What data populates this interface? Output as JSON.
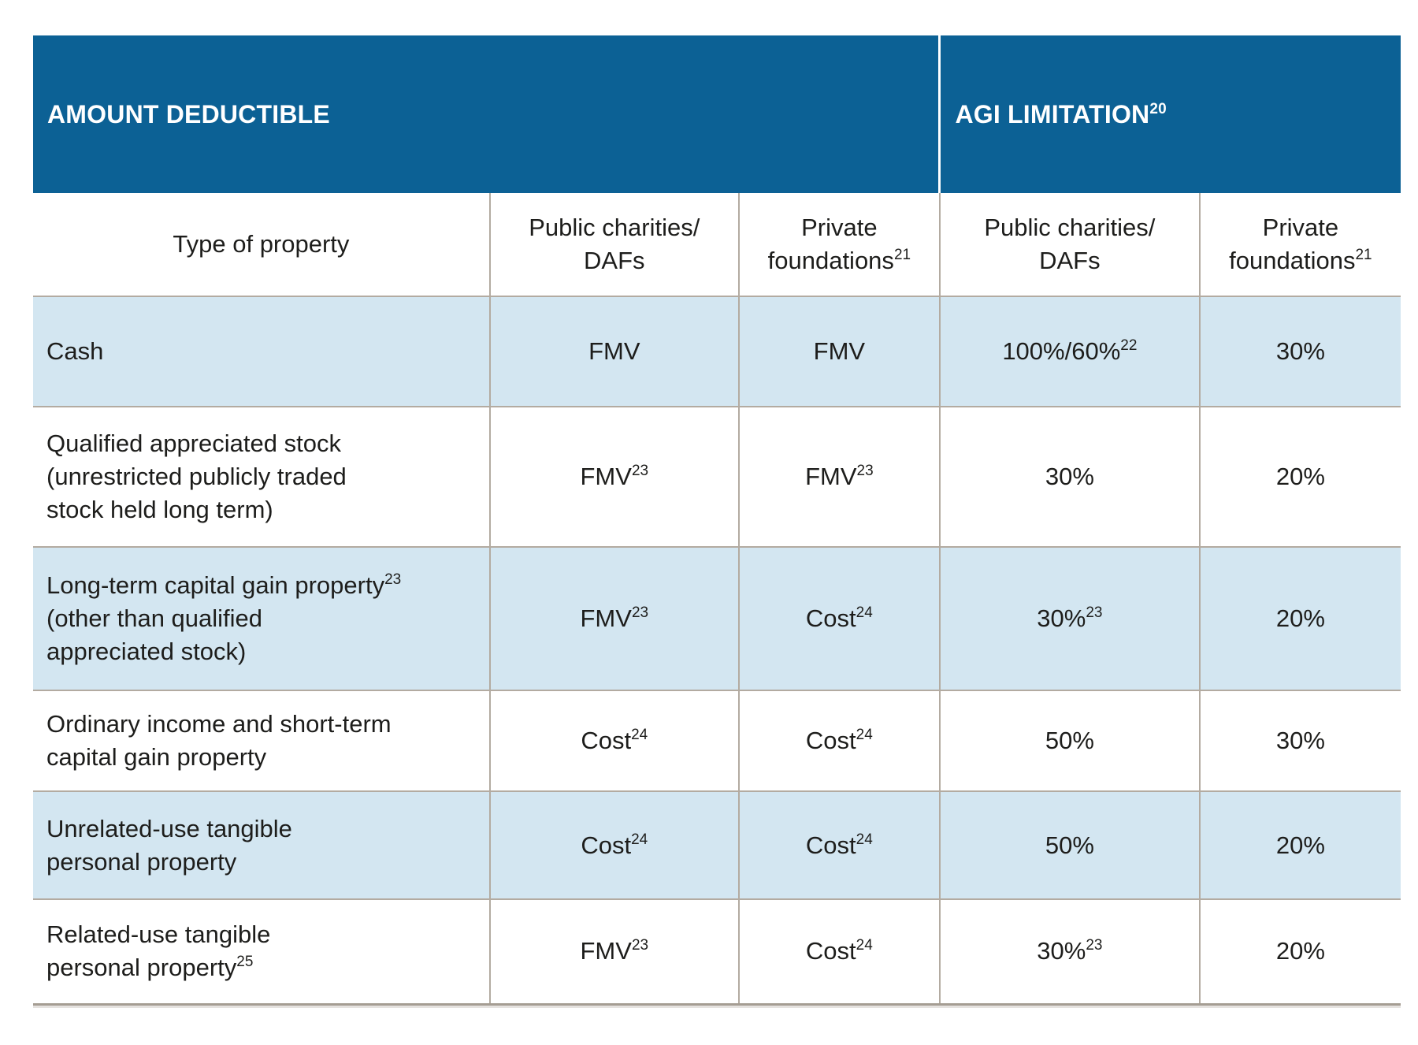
{
  "colors": {
    "header_blue": "#0c6195",
    "shaded_row_blue": "#d3e6f1",
    "grid_line": "#b3aba1",
    "text": "#1d1d1b"
  },
  "header": {
    "amount_deductible": "AMOUNT DEDUCTIBLE",
    "agi_limitation": "AGI LIMITATION^{20}"
  },
  "columns": [
    "Type of property",
    "Public charities/\nDAFs",
    "Private\nfoundations^{21}",
    "Public charities/\nDAFs",
    "Private\nfoundations^{21}"
  ],
  "table": {
    "rows": [
      {
        "property": "Cash",
        "cells": [
          "FMV",
          "FMV",
          "100%/60%^{22}",
          "30%"
        ],
        "shaded": true
      },
      {
        "property": "Qualified appreciated stock\n(unrestricted publicly traded\nstock held long term)",
        "cells": [
          "FMV^{23}",
          "FMV^{23}",
          "30%",
          "20%"
        ],
        "shaded": false
      },
      {
        "property": "Long-term capital gain property^{23}\n(other than qualified\nappreciated stock)",
        "cells": [
          "FMV^{23}",
          "Cost^{24}",
          "30%^{23}",
          "20%"
        ],
        "shaded": true
      },
      {
        "property": "Ordinary income and short-term\ncapital gain property",
        "cells": [
          "Cost^{24}",
          "Cost^{24}",
          "50%",
          "30%"
        ],
        "shaded": false
      },
      {
        "property": "Unrelated-use tangible\npersonal property",
        "cells": [
          "Cost^{24}",
          "Cost^{24}",
          "50%",
          "20%"
        ],
        "shaded": true
      },
      {
        "property": "Related-use tangible\npersonal property^{25}",
        "cells": [
          "FMV^{23}",
          "Cost^{24}",
          "30%^{23}",
          "20%"
        ],
        "shaded": false
      }
    ]
  }
}
